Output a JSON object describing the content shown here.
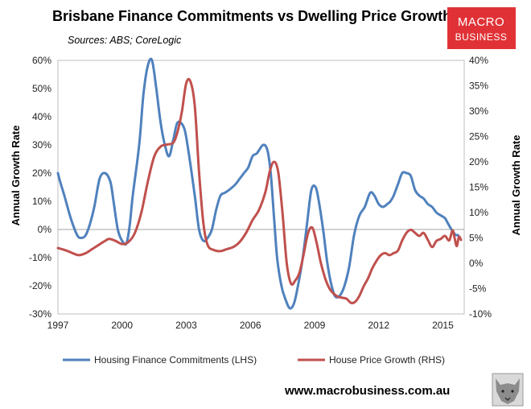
{
  "colors": {
    "lhs_series": "#4f81bd",
    "rhs_series": "#c0504d",
    "logo_bg": "#e03236"
  },
  "logo": {
    "line1": "MACRO",
    "line2": "BUSINESS"
  },
  "website": "www.macrobusiness.com.au",
  "wolf_icon": "wolf-icon",
  "chart_data": {
    "type": "line",
    "title": "Brisbane Finance Commitments vs Dwelling Price Growth",
    "subtitle": "Sources: ABS; CoreLogic",
    "y_left_label": "Annual Growth Rate",
    "y_right_label": "Annual Growth Rate",
    "y_left_range": [
      -30,
      60
    ],
    "y_right_range": [
      -10,
      40
    ],
    "y_left_ticks": [
      "-30%",
      "-20%",
      "-10%",
      "0%",
      "10%",
      "20%",
      "30%",
      "40%",
      "50%",
      "60%"
    ],
    "y_right_ticks": [
      "-10%",
      "-5%",
      "0%",
      "5%",
      "10%",
      "15%",
      "20%",
      "25%",
      "30%",
      "35%",
      "40%"
    ],
    "x_range": [
      1997,
      2016
    ],
    "x_ticks": [
      "1997",
      "2000",
      "2003",
      "2006",
      "2009",
      "2012",
      "2015"
    ],
    "series": [
      {
        "name": "Housing Finance Commitments (LHS)",
        "axis": "left",
        "x": [
          1997.0,
          1997.1,
          1997.3,
          1997.6,
          1997.9,
          1998.1,
          1998.3,
          1998.5,
          1998.7,
          1998.95,
          1999.2,
          1999.45,
          1999.6,
          1999.8,
          2000.0,
          2000.2,
          2000.35,
          2000.5,
          2000.8,
          2001.0,
          2001.2,
          2001.4,
          2001.6,
          2001.8,
          2002.0,
          2002.2,
          2002.4,
          2002.6,
          2002.9,
          2003.1,
          2003.4,
          2003.6,
          2003.8,
          2004.0,
          2004.2,
          2004.4,
          2004.6,
          2004.8,
          2005.0,
          2005.3,
          2005.5,
          2005.7,
          2005.9,
          2006.1,
          2006.3,
          2006.6,
          2006.8,
          2006.95,
          2007.1,
          2007.25,
          2007.45,
          2007.65,
          2007.85,
          2008.05,
          2008.25,
          2008.45,
          2008.65,
          2008.85,
          2009.05,
          2009.2,
          2009.4,
          2009.6,
          2009.8,
          2010.0,
          2010.3,
          2010.6,
          2010.85,
          2011.1,
          2011.35,
          2011.6,
          2011.8,
          2012.0,
          2012.2,
          2012.4,
          2012.55,
          2012.7,
          2012.9,
          2013.1,
          2013.3,
          2013.5,
          2013.7,
          2013.9,
          2014.1,
          2014.3,
          2014.5,
          2014.7,
          2014.9,
          2015.1,
          2015.25,
          2015.4,
          2015.5,
          2015.6,
          2015.7,
          2015.8
        ],
        "values": [
          20,
          17,
          12,
          4,
          -2,
          -3,
          -2,
          2,
          8,
          18,
          20,
          17,
          10,
          0,
          -4,
          -5,
          1,
          12,
          30,
          48,
          58,
          60,
          50,
          38,
          30,
          26,
          32,
          38,
          36,
          28,
          12,
          0,
          -4,
          -3,
          0,
          7,
          12,
          13,
          14,
          16,
          18,
          20,
          22,
          26,
          27,
          30,
          28,
          20,
          5,
          -10,
          -20,
          -25,
          -28,
          -26,
          -19,
          -10,
          2,
          14,
          15,
          10,
          0,
          -12,
          -20,
          -24,
          -22,
          -14,
          -2,
          5,
          8,
          13,
          12,
          9,
          8,
          9,
          10,
          12,
          16,
          20,
          20,
          19,
          14,
          12,
          11,
          9,
          8,
          6,
          5,
          4,
          2,
          0,
          -1,
          -2,
          -2,
          -3
        ]
      },
      {
        "name": "House Price Growth (RHS)",
        "axis": "right",
        "x": [
          1997.0,
          1997.4,
          1997.8,
          1998.0,
          1998.3,
          1998.6,
          1998.9,
          1999.2,
          1999.4,
          1999.7,
          2000.0,
          2000.3,
          2000.6,
          2000.9,
          2001.2,
          2001.5,
          2001.8,
          2002.1,
          2002.4,
          2002.6,
          2002.8,
          2003.0,
          2003.2,
          2003.4,
          2003.6,
          2003.8,
          2004.0,
          2004.3,
          2004.6,
          2004.9,
          2005.2,
          2005.5,
          2005.8,
          2006.1,
          2006.4,
          2006.7,
          2006.9,
          2007.1,
          2007.3,
          2007.5,
          2007.7,
          2007.9,
          2008.1,
          2008.3,
          2008.5,
          2008.7,
          2008.9,
          2009.1,
          2009.3,
          2009.5,
          2009.7,
          2009.9,
          2010.1,
          2010.3,
          2010.5,
          2010.7,
          2010.9,
          2011.1,
          2011.3,
          2011.5,
          2011.7,
          2011.9,
          2012.1,
          2012.3,
          2012.5,
          2012.7,
          2012.9,
          2013.1,
          2013.3,
          2013.5,
          2013.7,
          2013.9,
          2014.1,
          2014.3,
          2014.5,
          2014.7,
          2014.9,
          2015.1,
          2015.3,
          2015.45,
          2015.55,
          2015.65,
          2015.75,
          2015.85
        ],
        "values": [
          3,
          2.5,
          1.8,
          1.6,
          2,
          2.8,
          3.6,
          4.4,
          4.8,
          4.4,
          3.8,
          4.2,
          6,
          10,
          16,
          21,
          23,
          23.4,
          23.8,
          26,
          30,
          35.5,
          35.8,
          31,
          18,
          8,
          3.6,
          2.6,
          2.4,
          2.8,
          3.2,
          4.2,
          6,
          8.5,
          10.5,
          14,
          18,
          20,
          18,
          10,
          0,
          -4,
          -3.4,
          -1.8,
          2,
          6,
          7,
          4,
          0,
          -3,
          -5,
          -6,
          -6.6,
          -6.8,
          -7,
          -7.8,
          -7.6,
          -6.4,
          -4.5,
          -3,
          -1,
          0.5,
          1.6,
          2,
          1.6,
          2,
          2.5,
          4.5,
          6,
          6.6,
          6,
          5.4,
          6,
          4.6,
          3.2,
          4.4,
          4.8,
          5.4,
          4.5,
          6.5,
          5,
          3.4,
          5.2,
          4.6
        ]
      }
    ]
  }
}
